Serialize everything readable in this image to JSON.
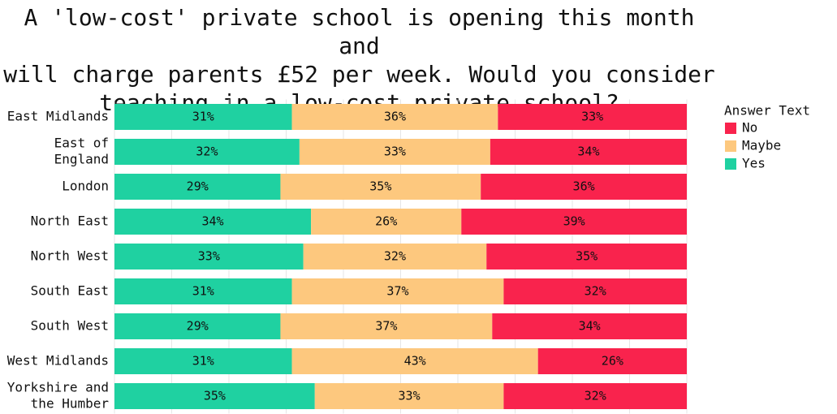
{
  "chart_data": {
    "type": "bar",
    "orientation": "horizontal",
    "stacked": true,
    "normalized": true,
    "title": "A 'low-cost' private school is opening this month and\nwill charge parents £52 per week. Would you consider\nteaching in a low-cost private school?",
    "xlabel": "",
    "ylabel": "",
    "xlim": [
      0,
      100
    ],
    "grid": true,
    "legend": {
      "title": "Answer Text",
      "placement": "right",
      "entries": [
        "No",
        "Maybe",
        "Yes"
      ]
    },
    "categories": [
      "East Midlands",
      "East of\nEngland",
      "London",
      "North East",
      "North West",
      "South East",
      "South West",
      "West Midlands",
      "Yorkshire and\nthe Humber"
    ],
    "series": [
      {
        "name": "Yes",
        "color": "#1fd1a1",
        "values": [
          31,
          32,
          29,
          34,
          33,
          31,
          29,
          31,
          35
        ]
      },
      {
        "name": "Maybe",
        "color": "#fdc87e",
        "values": [
          36,
          33,
          35,
          26,
          32,
          37,
          37,
          43,
          33
        ]
      },
      {
        "name": "No",
        "color": "#f9234d",
        "values": [
          33,
          34,
          36,
          39,
          35,
          32,
          34,
          26,
          32
        ]
      }
    ],
    "value_suffix": "%"
  }
}
